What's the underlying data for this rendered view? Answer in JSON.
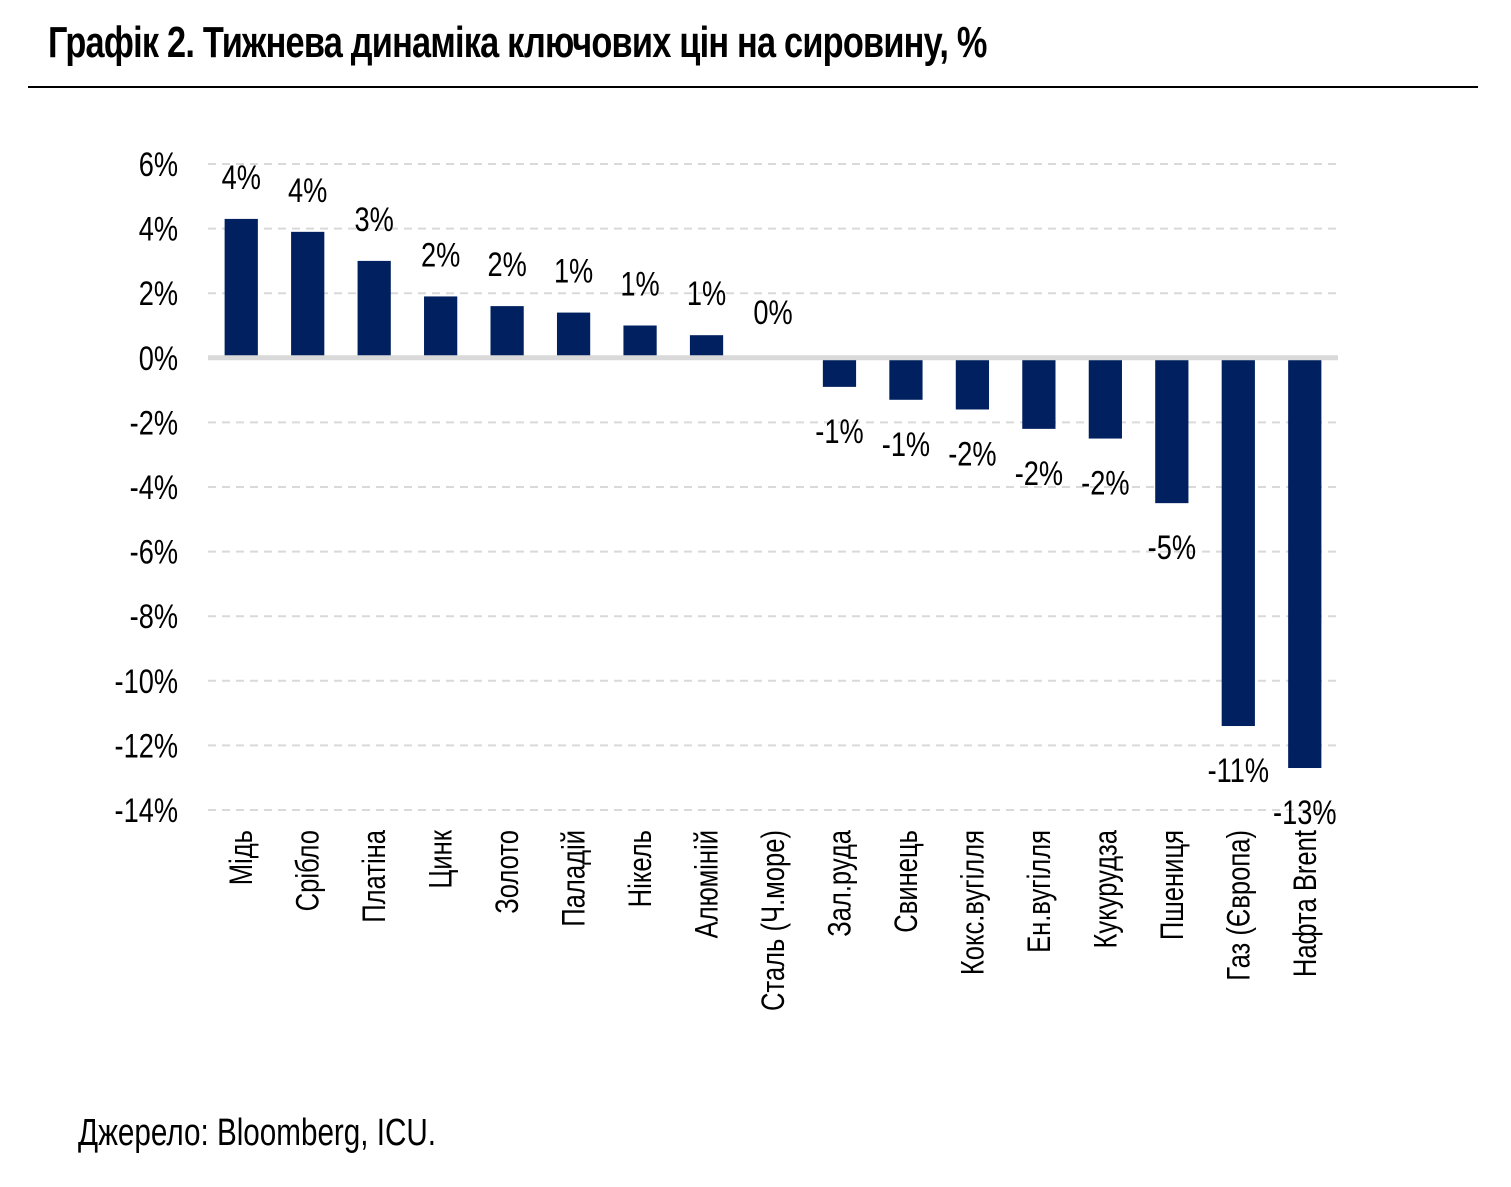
{
  "title": "Графік 2. Тижнева динаміка ключових цін на сировину, %",
  "source": "Джерело: Bloomberg, ICU.",
  "chart_data": {
    "type": "bar",
    "title": "Графік 2. Тижнева динаміка ключових цін на сировину, %",
    "xlabel": "",
    "ylabel": "",
    "ylim": [
      -14,
      6
    ],
    "yticks": [
      6,
      4,
      2,
      0,
      -2,
      -4,
      -6,
      -8,
      -10,
      -12,
      -14
    ],
    "ytick_labels": [
      "6%",
      "4%",
      "2%",
      "0%",
      "-2%",
      "-4%",
      "-6%",
      "-8%",
      "-10%",
      "-12%",
      "-14%"
    ],
    "grid": true,
    "legend": "none",
    "bar_color": "#002060",
    "categories": [
      "Мідь",
      "Срібло",
      "Платіна",
      "Цинк",
      "Золото",
      "Паладій",
      "Нікель",
      "Алюміній",
      "Сталь (Ч.море)",
      "Зал.руда",
      "Свинець",
      "Кокс.вугілля",
      "Ен.вугілля",
      "Кукурудза",
      "Пшениця",
      "Газ (Європа)",
      "Нафта Brent"
    ],
    "values": [
      4.3,
      3.9,
      3.0,
      1.9,
      1.6,
      1.4,
      1.0,
      0.7,
      0.0,
      -0.9,
      -1.3,
      -1.6,
      -2.2,
      -2.5,
      -4.5,
      -11.4,
      -12.7
    ],
    "data_labels": [
      "4%",
      "4%",
      "3%",
      "2%",
      "2%",
      "1%",
      "1%",
      "1%",
      "0%",
      "-1%",
      "-1%",
      "-2%",
      "-2%",
      "-2%",
      "-5%",
      "-11%",
      "-13%"
    ]
  }
}
